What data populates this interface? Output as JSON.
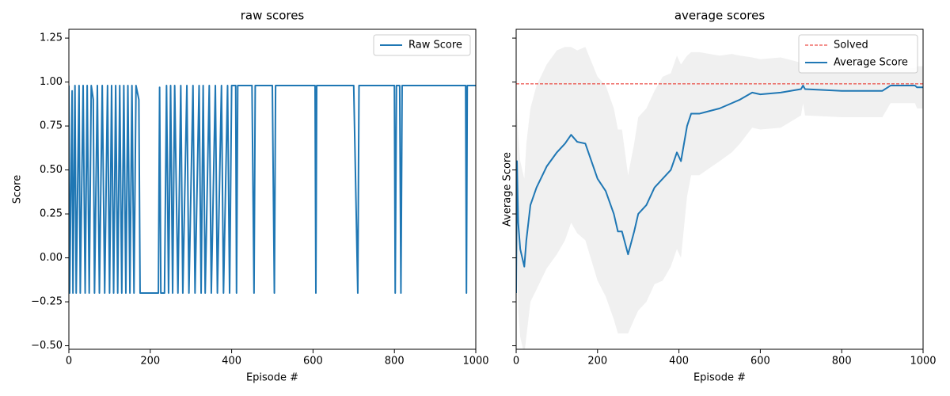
{
  "chart_data": [
    {
      "type": "line",
      "title": "raw scores",
      "xlabel": "Episode #",
      "ylabel": "Score",
      "xlim": [
        0,
        1000
      ],
      "ylim": [
        -0.52,
        1.3
      ],
      "xticks": [
        0,
        200,
        400,
        600,
        800,
        1000
      ],
      "yticks": [
        {
          "value": -0.5,
          "label": "−0.50"
        },
        {
          "value": -0.25,
          "label": "−0.25"
        },
        {
          "value": 0,
          "label": "0.00"
        },
        {
          "value": 0.25,
          "label": "0.25"
        },
        {
          "value": 0.5,
          "label": "0.50"
        },
        {
          "value": 0.75,
          "label": "0.75"
        },
        {
          "value": 1,
          "label": "1.00"
        },
        {
          "value": 1.25,
          "label": "1.25"
        }
      ],
      "show_ytick_labels": true,
      "legend": "upper right",
      "series": [
        {
          "name": "Raw Score",
          "color": "#1f77b4",
          "x": [
            0,
            2,
            8,
            10,
            15,
            18,
            25,
            28,
            35,
            40,
            45,
            50,
            55,
            60,
            63,
            70,
            75,
            82,
            88,
            95,
            100,
            105,
            110,
            115,
            120,
            125,
            130,
            135,
            140,
            145,
            150,
            155,
            160,
            165,
            172,
            175,
            220,
            223,
            226,
            235,
            240,
            245,
            250,
            255,
            260,
            268,
            275,
            280,
            290,
            295,
            305,
            310,
            320,
            325,
            330,
            335,
            345,
            350,
            360,
            365,
            375,
            380,
            390,
            395,
            400,
            410,
            412,
            415,
            450,
            455,
            458,
            500,
            505,
            508,
            605,
            607,
            609,
            700,
            710,
            713,
            800,
            802,
            805,
            813,
            816,
            819,
            975,
            977,
            979,
            1000
          ],
          "values": [
            0.98,
            -0.2,
            0.95,
            -0.2,
            0.98,
            -0.2,
            0.98,
            -0.2,
            0.98,
            -0.2,
            0.98,
            -0.2,
            0.98,
            0.9,
            -0.2,
            0.98,
            -0.2,
            0.98,
            -0.2,
            0.98,
            -0.2,
            0.98,
            -0.2,
            0.98,
            -0.2,
            0.98,
            -0.2,
            0.98,
            -0.2,
            0.98,
            -0.2,
            0.98,
            -0.2,
            0.98,
            0.9,
            -0.2,
            -0.2,
            0.97,
            -0.2,
            -0.2,
            0.98,
            -0.2,
            0.98,
            -0.2,
            0.98,
            -0.2,
            0.98,
            -0.2,
            0.98,
            -0.2,
            0.98,
            -0.2,
            0.98,
            -0.2,
            0.98,
            -0.2,
            0.98,
            -0.2,
            0.98,
            -0.2,
            0.98,
            -0.2,
            0.98,
            -0.2,
            0.98,
            0.98,
            -0.2,
            0.98,
            0.98,
            -0.2,
            0.98,
            0.98,
            -0.2,
            0.98,
            0.98,
            -0.2,
            0.98,
            0.98,
            -0.2,
            0.98,
            0.98,
            -0.2,
            0.98,
            0.98,
            -0.2,
            0.98,
            0.98,
            -0.2,
            0.98,
            0.98
          ]
        }
      ]
    },
    {
      "type": "line",
      "title": "average scores",
      "xlabel": "Episode #",
      "ylabel": "Average Score",
      "xlim": [
        0,
        1000
      ],
      "ylim": [
        -0.52,
        1.3
      ],
      "xticks": [
        0,
        200,
        400,
        600,
        800,
        1000
      ],
      "yticks": [
        -0.5,
        -0.25,
        0,
        0.25,
        0.5,
        0.75,
        1,
        1.25
      ],
      "show_ytick_labels": false,
      "legend": "upper right",
      "hline": {
        "name": "Solved",
        "value": 0.99,
        "color": "#e8231b"
      },
      "series": [
        {
          "name": "Average Score",
          "color": "#1f77b4",
          "x": [
            0,
            2,
            5,
            10,
            20,
            25,
            35,
            50,
            75,
            100,
            120,
            135,
            150,
            170,
            200,
            220,
            240,
            250,
            260,
            275,
            290,
            300,
            320,
            340,
            360,
            380,
            395,
            405,
            420,
            430,
            450,
            500,
            530,
            550,
            580,
            600,
            650,
            700,
            705,
            710,
            800,
            900,
            920,
            980,
            985,
            1000
          ],
          "values": [
            -0.2,
            0.55,
            0.2,
            0.05,
            -0.05,
            0.1,
            0.3,
            0.4,
            0.52,
            0.6,
            0.65,
            0.7,
            0.66,
            0.65,
            0.45,
            0.38,
            0.25,
            0.15,
            0.15,
            0.02,
            0.15,
            0.25,
            0.3,
            0.4,
            0.45,
            0.5,
            0.6,
            0.55,
            0.75,
            0.82,
            0.82,
            0.85,
            0.88,
            0.9,
            0.94,
            0.93,
            0.94,
            0.96,
            0.98,
            0.96,
            0.95,
            0.95,
            0.98,
            0.98,
            0.97,
            0.97
          ],
          "band": {
            "color": "#f0f0f0",
            "values": [
              0,
              0.3,
              0.5,
              0.5,
              0.5,
              0.55,
              0.55,
              0.58,
              0.58,
              0.58,
              0.55,
              0.5,
              0.52,
              0.55,
              0.58,
              0.6,
              0.6,
              0.58,
              0.58,
              0.45,
              0.5,
              0.55,
              0.55,
              0.55,
              0.58,
              0.55,
              0.55,
              0.55,
              0.4,
              0.35,
              0.35,
              0.3,
              0.28,
              0.25,
              0.2,
              0.2,
              0.2,
              0.15,
              0.1,
              0.15,
              0.15,
              0.15,
              0.1,
              0.1,
              0.12,
              0.12
            ]
          }
        }
      ]
    }
  ]
}
